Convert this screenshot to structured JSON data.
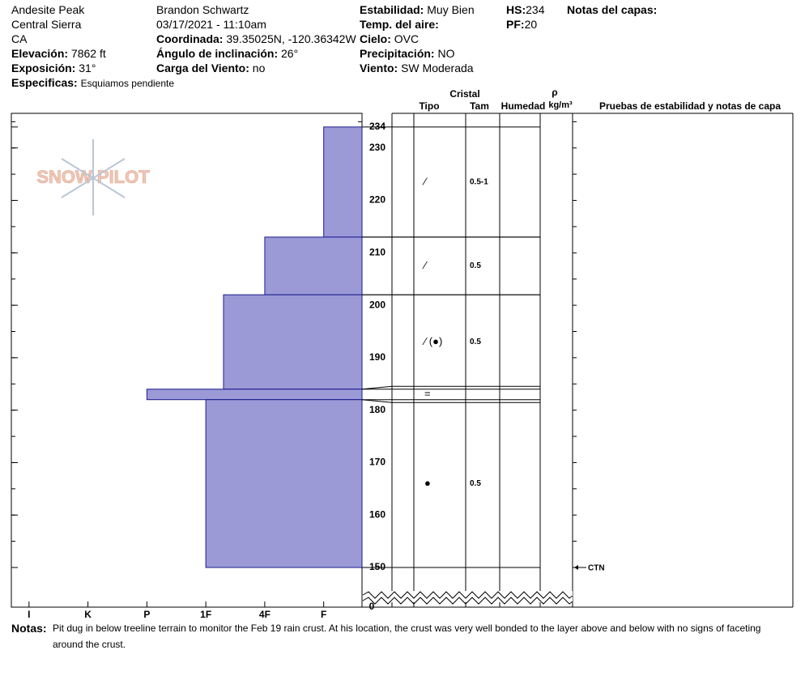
{
  "header": {
    "col1": [
      "Andesite Peak",
      "Central Sierra",
      "CA"
    ],
    "col1_fields": [
      {
        "label": "Elevación:",
        "value": "7862 ft"
      },
      {
        "label": "Exposición:",
        "value": "31°"
      },
      {
        "label": "Especificas:",
        "value": "Esquiamos pendiente"
      }
    ],
    "col2": [
      "Brandon Schwartz",
      "03/17/2021 - 11:10am"
    ],
    "col2_fields": [
      {
        "label": "Coordinada:",
        "value": "39.35025N, -120.36342W"
      },
      {
        "label": "Ángulo de inclinación:",
        "value": "26°"
      },
      {
        "label": "Carga del Viento:",
        "value": "no"
      }
    ],
    "col3_fields": [
      {
        "label": "Estabilidad:",
        "value": "Muy Bien"
      },
      {
        "label": "Temp. del aire:"
      },
      {
        "label": "Cielo:",
        "value": "OVC"
      },
      {
        "label": "Precipitación:",
        "value": "NO"
      },
      {
        "label": "Viento:",
        "value": "SW Moderada"
      }
    ],
    "col4_fields": [
      {
        "label": "HS:",
        "value": 234
      },
      {
        "label": "PF:",
        "value": 20
      }
    ],
    "layer_notes_label": "Notas del capas:"
  },
  "logo": "SNOW PILOT",
  "profile": {
    "ylim": [
      150,
      236.6
    ],
    "yticks": [
      150,
      160,
      170,
      180,
      190,
      200,
      210,
      220,
      230,
      234
    ],
    "break_tick": 0,
    "xlim": [
      6.3,
      0.35
    ],
    "xticks": [
      {
        "value": 6,
        "label": "I"
      },
      {
        "value": 5,
        "label": "K"
      },
      {
        "value": 4,
        "label": "P"
      },
      {
        "value": 3,
        "label": "1F"
      },
      {
        "value": 2,
        "label": "4F"
      },
      {
        "value": 1,
        "label": "F"
      }
    ],
    "color": "#9b9ad6",
    "layers": [
      {
        "top": 234,
        "bottom": 213,
        "hardness": 1,
        "grain": "⁄",
        "size": "0.5-1"
      },
      {
        "top": 213,
        "bottom": 202,
        "hardness": 2,
        "grain": "⁄",
        "size": "0.5"
      },
      {
        "top": 202,
        "bottom": 184,
        "hardness": 2.7,
        "grain": "⁄ (●)",
        "size": "0.5"
      },
      {
        "top": 184,
        "bottom": 182,
        "hardness": 4,
        "grain": "="
      },
      {
        "top": 182,
        "bottom": 150,
        "hardness": 3,
        "grain": "●",
        "size": "0.5"
      }
    ],
    "tests": [
      {
        "depth": 150,
        "result": "CTN"
      }
    ]
  },
  "table": {
    "crystal": "Cristal",
    "columns": [
      "Tipo",
      "Tam",
      "Humedad",
      "Pruebas de estabilidad y notas de capa"
    ],
    "density": "ρ",
    "density_unit": "kg/m³"
  },
  "notes": {
    "label": "Notas:",
    "text": "Pit dug in below treeline terrain to monitor the Feb 19 rain crust. At his location, the crust was very well bonded to the layer above and below with no signs of faceting around the crust."
  }
}
